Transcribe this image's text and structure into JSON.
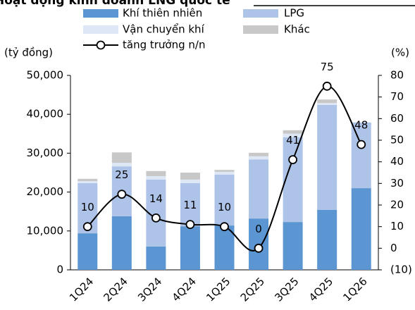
{
  "chart_data": {
    "type": "bar_line",
    "title": "Hoạt động kinh doanh LNG quốc tế",
    "y_label": "(tỷ đồng)",
    "y2_label": "(%)",
    "categories": [
      "1Q24",
      "2Q24",
      "3Q24",
      "4Q24",
      "1Q25",
      "2Q25",
      "3Q25",
      "4Q25",
      "1Q26"
    ],
    "series": [
      {
        "name": "Khí thiên nhiên",
        "color": "#5b96d2",
        "type": "bar",
        "values": [
          9400,
          13800,
          6000,
          11200,
          11400,
          13200,
          12300,
          15400,
          21000
        ]
      },
      {
        "name": "LPG",
        "color": "#aec3e8",
        "type": "bar",
        "values": [
          12900,
          12800,
          17200,
          11100,
          13100,
          15200,
          21800,
          27000,
          16900
        ]
      },
      {
        "name": "Vận chuyển khí",
        "color": "#dde7f6",
        "type": "bar",
        "values": [
          500,
          900,
          900,
          900,
          700,
          800,
          900,
          500,
          0
        ]
      },
      {
        "name": "Khác",
        "color": "#c8c8c8",
        "type": "bar",
        "values": [
          600,
          2700,
          1300,
          1800,
          500,
          900,
          900,
          900,
          0
        ]
      },
      {
        "name": "tăng trưởng n/n",
        "color": "#000000",
        "type": "line",
        "axis": "y2",
        "values": [
          10,
          25,
          14,
          11,
          10,
          0,
          41,
          75,
          48
        ]
      }
    ],
    "ylim": [
      0,
      50000
    ],
    "yticks": [
      0,
      {
        "value": 10000,
        "label": "10,000"
      },
      {
        "value": 20000,
        "label": "20,000"
      },
      {
        "value": 30000,
        "label": "30,000"
      },
      {
        "value": 40000,
        "label": "40,000"
      },
      {
        "value": 50000,
        "label": "50,000"
      }
    ],
    "y2lim": [
      -10,
      80
    ],
    "y2ticks": [
      {
        "value": -10,
        "label": "(10)"
      },
      0,
      10,
      20,
      30,
      40,
      50,
      60,
      70,
      80
    ],
    "y2_negative_label_color": "#e00000",
    "grid": false
  }
}
